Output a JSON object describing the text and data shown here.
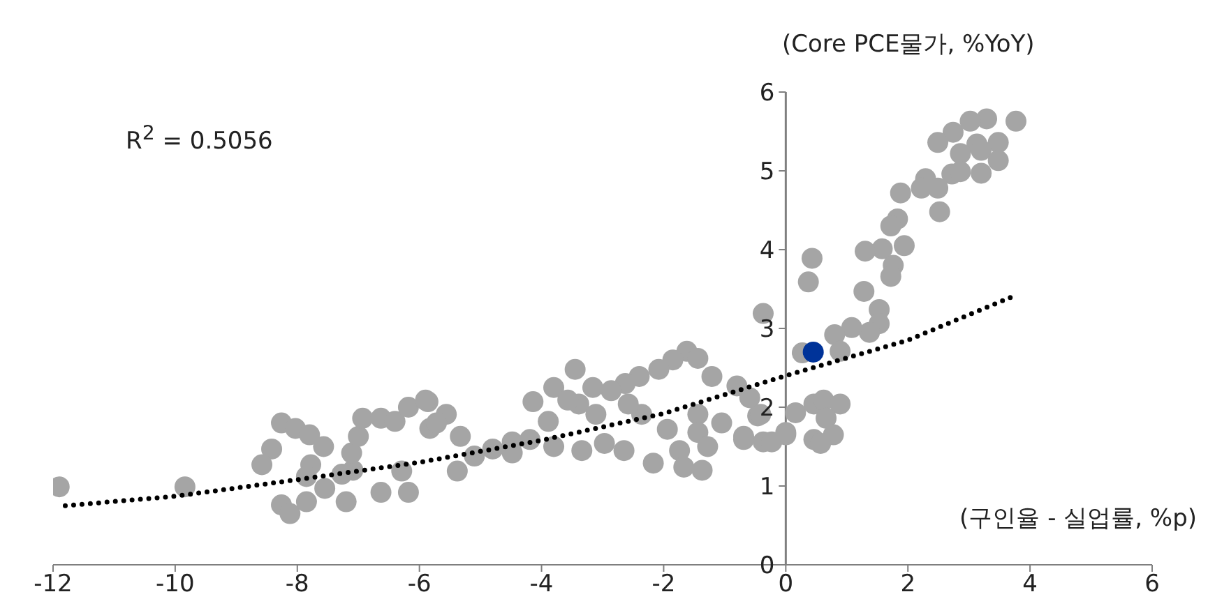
{
  "chart_data": {
    "type": "scatter",
    "xlabel": "(구인율 - 실업률, %p)",
    "ylabel": "(Core PCE물가, %YoY)",
    "annotations": [
      "R$^{2}$ = 0.5056"
    ],
    "xlim": [
      -12,
      6
    ],
    "ylim": [
      0,
      6
    ],
    "xticks": [
      -12,
      -10,
      -8,
      -6,
      -4,
      -2,
      0,
      2,
      4,
      6
    ],
    "yticks": [
      0,
      1,
      2,
      3,
      4,
      5,
      6
    ],
    "series": [
      {
        "marker": "circle",
        "color": "#a5a5a5",
        "x": [
          3.77,
          3.29,
          3.02,
          2.74,
          2.49,
          3.13,
          3.48,
          2.86,
          3.2,
          3.48,
          2.72,
          2.86,
          3.2,
          2.29,
          2.49,
          2.22,
          1.88,
          2.52,
          1.83,
          1.72,
          1.94,
          1.58,
          1.3,
          1.76,
          1.72,
          1.28,
          1.53,
          1.53,
          1.37,
          1.08,
          0.8,
          0.89,
          0.27,
          0.43,
          0.37,
          -0.37,
          0.16,
          0.46,
          0.62,
          0.89,
          0.66,
          0.78,
          0.46,
          0.57,
          0.0,
          -0.46,
          -0.37,
          -0.69,
          -1.62,
          -1.44,
          -1.85,
          -1.21,
          -2.08,
          -2.4,
          -2.63,
          -2.86,
          -0.8,
          -0.59,
          -0.41,
          -3.45,
          -3.8,
          -3.16,
          -4.14,
          -3.39,
          -3.11,
          -3.89,
          -1.94,
          -1.44,
          -1.44,
          -1.05,
          -0.69,
          -0.23,
          0.0,
          -1.28,
          -1.74,
          -2.17,
          -1.67,
          -1.37,
          -2.65,
          -2.97,
          -3.34,
          -3.8,
          -4.19,
          -4.48,
          -4.8,
          -5.1,
          -5.38,
          -5.33,
          -5.56,
          -5.86,
          -5.83,
          -2.36,
          -2.58,
          -3.57,
          -4.48,
          -11.9,
          -9.84,
          -8.26,
          -8.03,
          -8.42,
          -8.58,
          -7.8,
          -7.57,
          -7.78,
          -7.85,
          -8.26,
          -8.12,
          -7.85,
          -7.55,
          -7.2,
          -7.09,
          -7.11,
          -7.0,
          -6.93,
          -6.63,
          -6.4,
          -6.18,
          -5.9,
          -5.72,
          -7.27,
          -6.63,
          -6.18,
          -6.29
        ],
        "values": [
          5.63,
          5.66,
          5.63,
          5.49,
          5.36,
          5.34,
          5.36,
          5.22,
          5.26,
          5.13,
          4.96,
          4.99,
          4.97,
          4.9,
          4.78,
          4.78,
          4.72,
          4.48,
          4.39,
          4.3,
          4.05,
          4.01,
          3.98,
          3.8,
          3.66,
          3.47,
          3.24,
          3.06,
          2.95,
          3.01,
          2.92,
          2.71,
          2.69,
          3.89,
          3.59,
          3.19,
          1.93,
          2.04,
          2.09,
          2.04,
          1.86,
          1.65,
          1.59,
          1.54,
          1.65,
          1.89,
          1.56,
          1.63,
          2.71,
          2.62,
          2.6,
          2.39,
          2.48,
          2.39,
          2.3,
          2.21,
          2.27,
          2.12,
          1.91,
          2.48,
          2.25,
          2.25,
          2.07,
          2.04,
          1.91,
          1.82,
          1.72,
          1.91,
          1.68,
          1.8,
          1.59,
          1.56,
          1.68,
          1.5,
          1.45,
          1.29,
          1.24,
          1.2,
          1.45,
          1.54,
          1.45,
          1.5,
          1.59,
          1.56,
          1.47,
          1.38,
          1.19,
          1.63,
          1.91,
          2.07,
          1.73,
          1.91,
          2.04,
          2.09,
          1.42,
          0.99,
          0.99,
          1.8,
          1.73,
          1.47,
          1.27,
          1.65,
          1.5,
          1.27,
          1.12,
          0.76,
          0.65,
          0.8,
          0.97,
          0.8,
          1.2,
          1.42,
          1.63,
          1.86,
          1.86,
          1.82,
          2.0,
          2.09,
          1.8,
          1.15,
          0.92,
          0.92,
          1.19
        ]
      },
      {
        "marker": "circle",
        "color": "#003399",
        "x": [
          0.45
        ],
        "values": [
          2.7
        ]
      },
      {
        "type": "line",
        "marker": "none",
        "line_style": "dotted",
        "color": "#000000",
        "x": [
          -11.8,
          -10,
          -8,
          -6,
          -4,
          -2,
          0,
          2,
          3.7
        ],
        "values": [
          0.75,
          0.87,
          1.08,
          1.3,
          1.58,
          1.92,
          2.4,
          2.85,
          3.4
        ]
      }
    ]
  }
}
